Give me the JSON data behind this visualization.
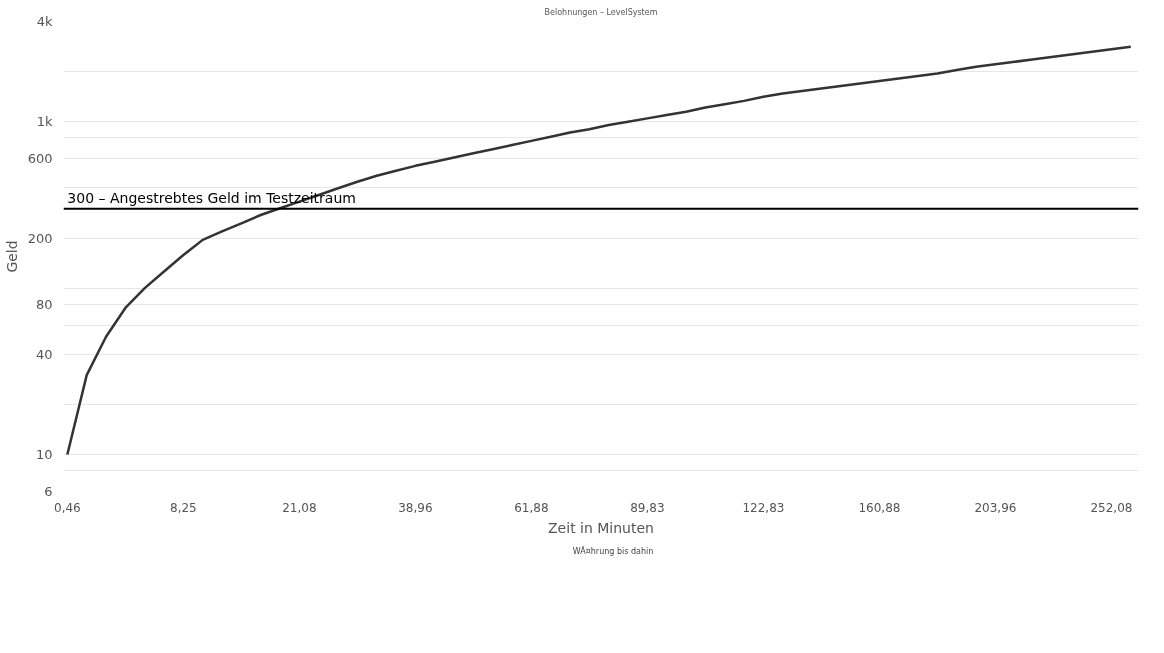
{
  "chart_data": {
    "type": "line",
    "title": "Belohnungen – LevelSystem",
    "xlabel": "Zeit in Minuten",
    "ylabel": "Geld",
    "categories": [
      "0,46",
      null,
      null,
      null,
      null,
      null,
      "8,25",
      null,
      null,
      null,
      null,
      null,
      "21,08",
      null,
      null,
      null,
      null,
      null,
      "38,96",
      null,
      null,
      null,
      null,
      null,
      "61,88",
      null,
      null,
      null,
      null,
      null,
      "89,83",
      null,
      null,
      null,
      null,
      null,
      "122,83",
      null,
      null,
      null,
      null,
      null,
      "160,88",
      null,
      null,
      null,
      null,
      null,
      "203,96",
      null,
      null,
      null,
      null,
      null,
      "252,08",
      null
    ],
    "series": [
      {
        "name": "WÃ¤hrung bis dahin",
        "color": "#333333",
        "values": [
          10,
          30,
          51,
          76,
          100,
          126,
          158,
          195,
          219,
          245,
          275,
          302,
          331,
          363,
          398,
          436,
          473,
          507,
          543,
          575,
          610,
          646,
          684,
          724,
          767,
          813,
          861,
          902,
          955,
          1000,
          1047,
          1096,
          1148,
          1216,
          1274,
          1334,
          1413,
          1479,
          1531,
          1585,
          1641,
          1698,
          1758,
          1820,
          1884,
          1950,
          2042,
          2138,
          2213,
          2291,
          2371,
          2455,
          2541,
          2630,
          2723,
          2818
        ]
      }
    ],
    "log": "y",
    "ylim": [
      6,
      4000
    ],
    "yticks": [
      {
        "value": 4000,
        "label": "4k"
      },
      {
        "value": 2000,
        "label": null
      },
      {
        "value": 1000,
        "label": "1k"
      },
      {
        "value": 800,
        "label": null
      },
      600,
      {
        "value": 400,
        "label": null
      },
      200,
      {
        "value": 100,
        "label": null
      },
      80,
      {
        "value": 60,
        "label": null
      },
      40,
      {
        "value": 20,
        "label": null
      },
      10,
      {
        "value": 8,
        "label": null
      },
      6
    ],
    "ref_lines": [
      {
        "axis": "y",
        "value": 300,
        "label": "300 – Angestrebtes Geld im Testzeitraum",
        "color": "#000000"
      }
    ],
    "grid": "y",
    "legend": "bottom",
    "marker": "none",
    "line_style": "solid"
  }
}
